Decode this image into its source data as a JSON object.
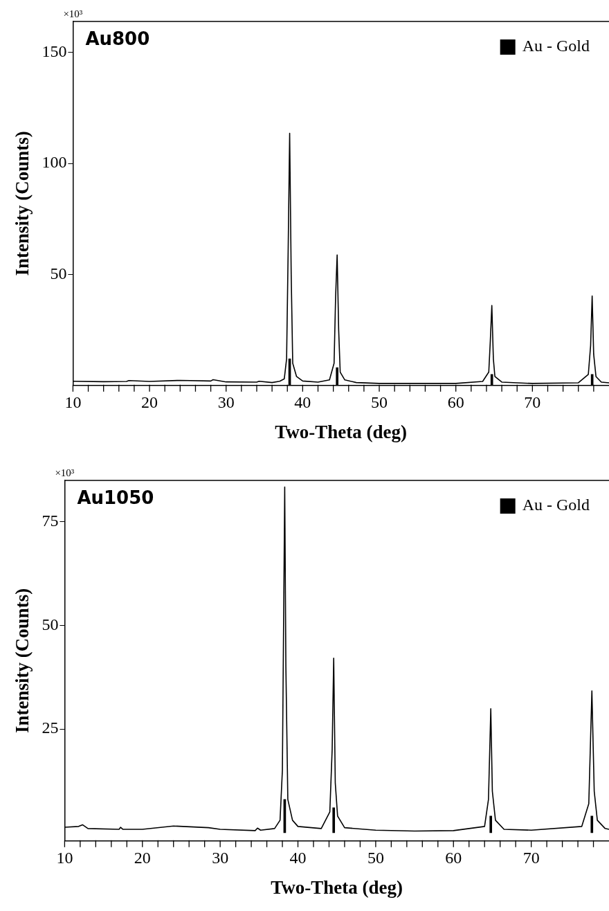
{
  "chart_data": [
    {
      "type": "line",
      "title": "Au800",
      "xlabel": "Two-Theta (deg)",
      "ylabel": "Intensity (Counts)",
      "annotations": [
        "×10³"
      ],
      "legend": "top right",
      "grid": false,
      "marker": "none",
      "xlim": [
        10,
        80
      ],
      "ylim": [
        0,
        164
      ],
      "xticks": [
        10,
        {
          "value": 12,
          "label": null
        },
        {
          "value": 14,
          "label": null
        },
        {
          "value": 16,
          "label": null
        },
        {
          "value": 18,
          "label": null
        },
        20,
        {
          "value": 22,
          "label": null
        },
        {
          "value": 24,
          "label": null
        },
        {
          "value": 26,
          "label": null
        },
        {
          "value": 28,
          "label": null
        },
        30,
        {
          "value": 32,
          "label": null
        },
        {
          "value": 34,
          "label": null
        },
        {
          "value": 36,
          "label": null
        },
        {
          "value": 38,
          "label": null
        },
        40,
        {
          "value": 42,
          "label": null
        },
        {
          "value": 44,
          "label": null
        },
        {
          "value": 46,
          "label": null
        },
        {
          "value": 48,
          "label": null
        },
        50,
        {
          "value": 52,
          "label": null
        },
        {
          "value": 54,
          "label": null
        },
        {
          "value": 56,
          "label": null
        },
        {
          "value": 58,
          "label": null
        },
        60,
        {
          "value": 62,
          "label": null
        },
        {
          "value": 64,
          "label": null
        },
        {
          "value": 66,
          "label": null
        },
        {
          "value": 68,
          "label": null
        },
        70,
        {
          "value": 72,
          "label": null
        },
        {
          "value": 74,
          "label": null
        },
        {
          "value": 76,
          "label": null
        },
        {
          "value": 78,
          "label": null
        }
      ],
      "yticks": [
        50,
        100,
        150
      ],
      "series": [
        {
          "color": "#000000",
          "x": [
            10,
            14,
            17,
            17.3,
            20,
            24,
            28,
            28.3,
            30,
            34,
            34.3,
            36,
            37,
            37.6,
            37.9,
            38.1,
            38.3,
            38.5,
            38.7,
            39.2,
            40,
            42,
            43.5,
            44.1,
            44.3,
            44.5,
            44.7,
            44.9,
            45.5,
            47,
            50,
            55,
            60,
            63.5,
            64.3,
            64.5,
            64.7,
            64.9,
            65.1,
            66,
            70,
            76,
            77.3,
            77.6,
            77.8,
            78,
            78.3,
            79,
            80
          ],
          "values": [
            1.9,
            1.7,
            1.8,
            2.2,
            1.8,
            2.3,
            2.0,
            2.6,
            1.6,
            1.5,
            1.9,
            1.3,
            1.9,
            3,
            12,
            60,
            113.6,
            50,
            10,
            4,
            2,
            1.5,
            2.5,
            10,
            40,
            58.8,
            25,
            6,
            2.5,
            1.3,
            0.9,
            0.9,
            0.9,
            1.8,
            6,
            20,
            36,
            12,
            4,
            1.5,
            0.9,
            1.2,
            5,
            18,
            40.3,
            14,
            4,
            1.5,
            1.2
          ]
        },
        {
          "type": "bar",
          "name": "Au - Gold",
          "color": "#000000",
          "x": [
            38.3,
            44.5,
            64.7,
            77.8
          ],
          "values": [
            12,
            8,
            5,
            5
          ]
        }
      ]
    },
    {
      "type": "line",
      "title": "Au1050",
      "xlabel": "Two-Theta (deg)",
      "ylabel": "Intensity (Counts)",
      "annotations": [
        "×10³"
      ],
      "legend": "top right",
      "grid": false,
      "marker": "none",
      "xlim": [
        10,
        80
      ],
      "ylim": [
        -2,
        85
      ],
      "xticks": [
        10,
        {
          "value": 12,
          "label": null
        },
        {
          "value": 14,
          "label": null
        },
        {
          "value": 16,
          "label": null
        },
        {
          "value": 18,
          "label": null
        },
        20,
        {
          "value": 22,
          "label": null
        },
        {
          "value": 24,
          "label": null
        },
        {
          "value": 26,
          "label": null
        },
        {
          "value": 28,
          "label": null
        },
        30,
        {
          "value": 32,
          "label": null
        },
        {
          "value": 34,
          "label": null
        },
        {
          "value": 36,
          "label": null
        },
        {
          "value": 38,
          "label": null
        },
        40,
        {
          "value": 42,
          "label": null
        },
        {
          "value": 44,
          "label": null
        },
        {
          "value": 46,
          "label": null
        },
        {
          "value": 48,
          "label": null
        },
        50,
        {
          "value": 52,
          "label": null
        },
        {
          "value": 54,
          "label": null
        },
        {
          "value": 56,
          "label": null
        },
        {
          "value": 58,
          "label": null
        },
        60,
        {
          "value": 62,
          "label": null
        },
        {
          "value": 64,
          "label": null
        },
        {
          "value": 66,
          "label": null
        },
        {
          "value": 68,
          "label": null
        },
        70,
        {
          "value": 72,
          "label": null
        },
        {
          "value": 74,
          "label": null
        },
        {
          "value": 76,
          "label": null
        },
        {
          "value": 78,
          "label": null
        }
      ],
      "yticks": [
        25,
        50,
        75
      ],
      "series": [
        {
          "color": "#000000",
          "x": [
            10,
            11.8,
            12.3,
            13,
            17,
            17.2,
            17.5,
            20,
            24,
            28.5,
            30,
            34.5,
            34.8,
            35.2,
            37,
            37.7,
            38.0,
            38.2,
            38.3,
            38.45,
            38.7,
            39.3,
            40,
            43,
            44.1,
            44.4,
            44.6,
            44.8,
            45.1,
            46,
            50,
            55,
            60,
            64,
            64.5,
            64.8,
            65.0,
            65.4,
            66.5,
            70,
            76.5,
            77.4,
            77.8,
            78.1,
            78.5,
            79.5,
            80
          ],
          "values": [
            1.3,
            1.5,
            1.9,
            1.0,
            0.8,
            1.3,
            0.8,
            0.8,
            1.6,
            1.2,
            0.8,
            0.5,
            1.1,
            0.6,
            1.0,
            3,
            15,
            60,
            83.4,
            40,
            8,
            3,
            1.5,
            1.0,
            5,
            20,
            42.1,
            12,
            4,
            1.2,
            0.6,
            0.4,
            0.5,
            1.5,
            8,
            29.9,
            10,
            3,
            0.8,
            0.6,
            1.5,
            7,
            34.2,
            10,
            3,
            1,
            0.8
          ]
        },
        {
          "type": "bar",
          "name": "Au - Gold",
          "color": "#000000",
          "x": [
            38.3,
            44.6,
            64.8,
            77.8
          ],
          "values": [
            8,
            6,
            4,
            4
          ]
        }
      ]
    }
  ]
}
